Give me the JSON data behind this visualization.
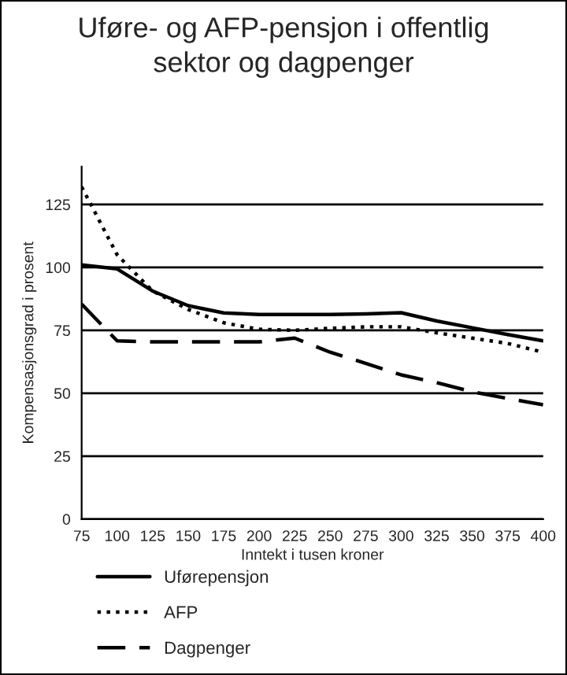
{
  "chart_data": {
    "type": "line",
    "title": "Uføre- og AFP-pensjon i offentlig\nsektor og dagpenger",
    "xlabel": "Inntekt i tusen kroner",
    "ylabel": "Kompensasjonsgrad i prosent",
    "x": [
      75,
      100,
      125,
      150,
      175,
      200,
      225,
      250,
      275,
      300,
      325,
      350,
      375,
      400
    ],
    "series": [
      {
        "name": "Uførepensjon",
        "color": "#000000",
        "line_style": "solid",
        "values": [
          101,
          99.4,
          90.6,
          84.8,
          81.9,
          81.3,
          81.3,
          81.3,
          81.5,
          82,
          78.7,
          76,
          73.3,
          70.8
        ]
      },
      {
        "name": "AFP",
        "color": "#000000",
        "line_style": "dotted",
        "values": [
          132,
          105,
          90.6,
          83.3,
          78,
          75.4,
          75,
          75.8,
          76.4,
          76.4,
          74,
          71.9,
          69.8,
          66.3
        ]
      },
      {
        "name": "Dagpenger",
        "color": "#000000",
        "line_style": "dashed",
        "values": [
          85.4,
          70.8,
          70.4,
          70.4,
          70.4,
          70.4,
          71.9,
          66.3,
          61.9,
          57.3,
          54.2,
          50.6,
          47.9,
          45.4
        ]
      }
    ],
    "xlim": [
      75,
      400
    ],
    "xticks": [
      75,
      100,
      125,
      150,
      175,
      200,
      225,
      250,
      275,
      300,
      325,
      350,
      375,
      400
    ],
    "ylim": [
      0,
      140
    ],
    "yticks": [
      0,
      25,
      50,
      75,
      100,
      125
    ],
    "grid": "y",
    "legend": "bottom",
    "marker": "none"
  }
}
